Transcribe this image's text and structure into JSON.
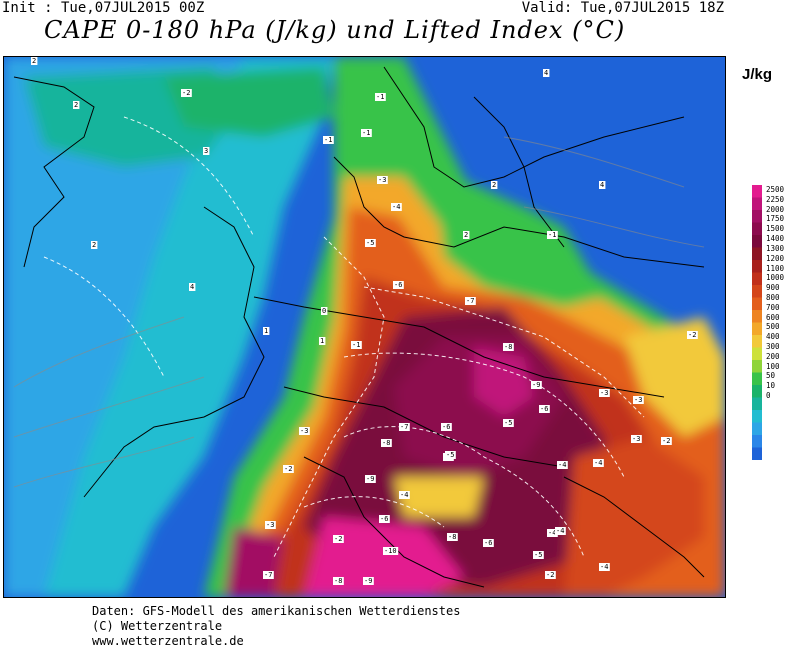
{
  "header": {
    "init": "Init : Tue,07JUL2015 00Z",
    "valid": "Valid: Tue,07JUL2015 18Z",
    "title": "CAPE 0-180 hPa (J/kg) und Lifted Index (°C)"
  },
  "legend": {
    "unit": "J/kg",
    "values": [
      "2500",
      "2250",
      "2000",
      "1750",
      "1500",
      "1400",
      "1300",
      "1200",
      "1100",
      "1000",
      "900",
      "800",
      "700",
      "600",
      "500",
      "400",
      "300",
      "200",
      "100",
      "50",
      "10",
      "0"
    ],
    "colors": [
      "#e31b8f",
      "#c0137a",
      "#a20f64",
      "#8c0a4e",
      "#7a083c",
      "#8d1424",
      "#a8201b",
      "#c1301a",
      "#d4461a",
      "#e35f1d",
      "#ee8422",
      "#f3a82a",
      "#f2c93a",
      "#cde13b",
      "#8fd43a",
      "#39c34a",
      "#1ab36a",
      "#18b49c",
      "#23bdd1",
      "#2ea6e6",
      "#2b86e8",
      "#1e63d8"
    ]
  },
  "footer": {
    "line1": "Daten: GFS-Modell des amerikanischen Wetterdienstes",
    "line2": "(C) Wetterzentrale",
    "line3": "www.wetterzentrale.de"
  },
  "lifted_index_labels": [
    "-2",
    "-1",
    "-1",
    "-1",
    "-3",
    "-4",
    "-5",
    "-6",
    "-7",
    "-8",
    "-9",
    "-6",
    "-5",
    "-4",
    "-3",
    "-2",
    "-1",
    "0",
    "1",
    "2",
    "2",
    "2",
    "3",
    "4",
    "4",
    "4",
    "2",
    "1",
    "2",
    "-2",
    "-1",
    "-8",
    "-7",
    "-9",
    "-6",
    "-5",
    "-5",
    "-4",
    "-3",
    "-3",
    "-4",
    "-4",
    "-2",
    "-2",
    "-3",
    "-6",
    "-8",
    "-7",
    "-9",
    "-10",
    "-8",
    "-6",
    "-5",
    "-4",
    "-4",
    "-3",
    "-2"
  ]
}
